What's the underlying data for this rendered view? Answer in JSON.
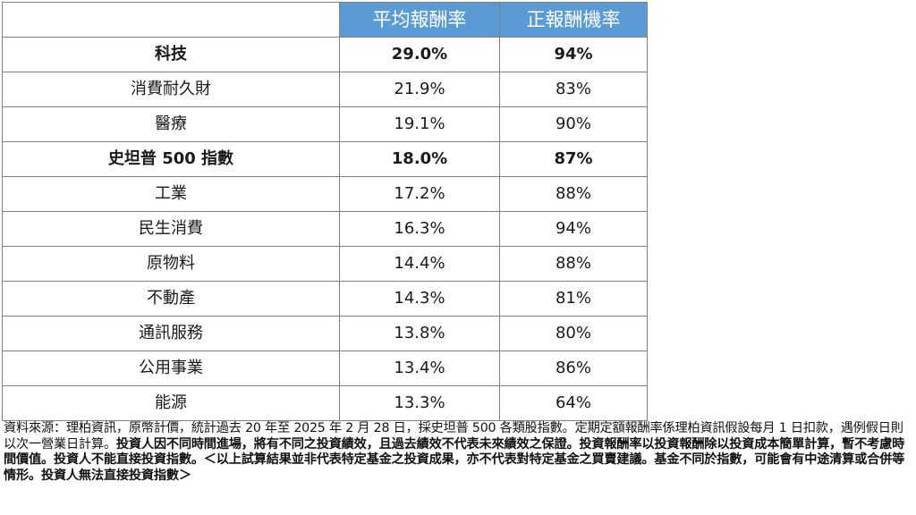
{
  "table": {
    "headers": [
      "",
      "平均報酬率",
      "正報酬機率"
    ],
    "rows": [
      {
        "name": "科技",
        "avg": "29.0%",
        "pos": "94%",
        "bold": true
      },
      {
        "name": "消費耐久財",
        "avg": "21.9%",
        "pos": "83%",
        "bold": false
      },
      {
        "name": "醫療",
        "avg": "19.1%",
        "pos": "90%",
        "bold": false
      },
      {
        "name": "史坦普 500 指數",
        "avg": "18.0%",
        "pos": "87%",
        "bold": true
      },
      {
        "name": "工業",
        "avg": "17.2%",
        "pos": "88%",
        "bold": false
      },
      {
        "name": "民生消費",
        "avg": "16.3%",
        "pos": "94%",
        "bold": false
      },
      {
        "name": "原物料",
        "avg": "14.4%",
        "pos": "88%",
        "bold": false
      },
      {
        "name": "不動產",
        "avg": "14.3%",
        "pos": "81%",
        "bold": false
      },
      {
        "name": "通訊服務",
        "avg": "13.8%",
        "pos": "80%",
        "bold": false
      },
      {
        "name": "公用事業",
        "avg": "13.4%",
        "pos": "86%",
        "bold": false
      },
      {
        "name": "能源",
        "avg": "13.3%",
        "pos": "64%",
        "bold": false
      }
    ],
    "header_color": "#5b9bd5"
  },
  "footnote": {
    "normal": "資料來源：理柏資訊，原幣計價，統計過去 20 年至 2025 年 2 月 28 日，採史坦普 500 各類股指數。定期定額報酬率係理柏資訊假設每月 1 日扣款，遇例假日則以次一營業日計算。",
    "bold": "投資人因不同時間進場，將有不同之投資績效，且過去績效不代表未來績效之保證。投資報酬率以投資報酬除以投資成本簡單計算，暫不考慮時間價值。投資人不能直接投資指數。＜以上試算結果並非代表特定基金之投資成果，亦不代表對特定基金之買賣建議。基金不同於指數，可能會有中途清算或合併等情形。投資人無法直接投資指數＞"
  }
}
